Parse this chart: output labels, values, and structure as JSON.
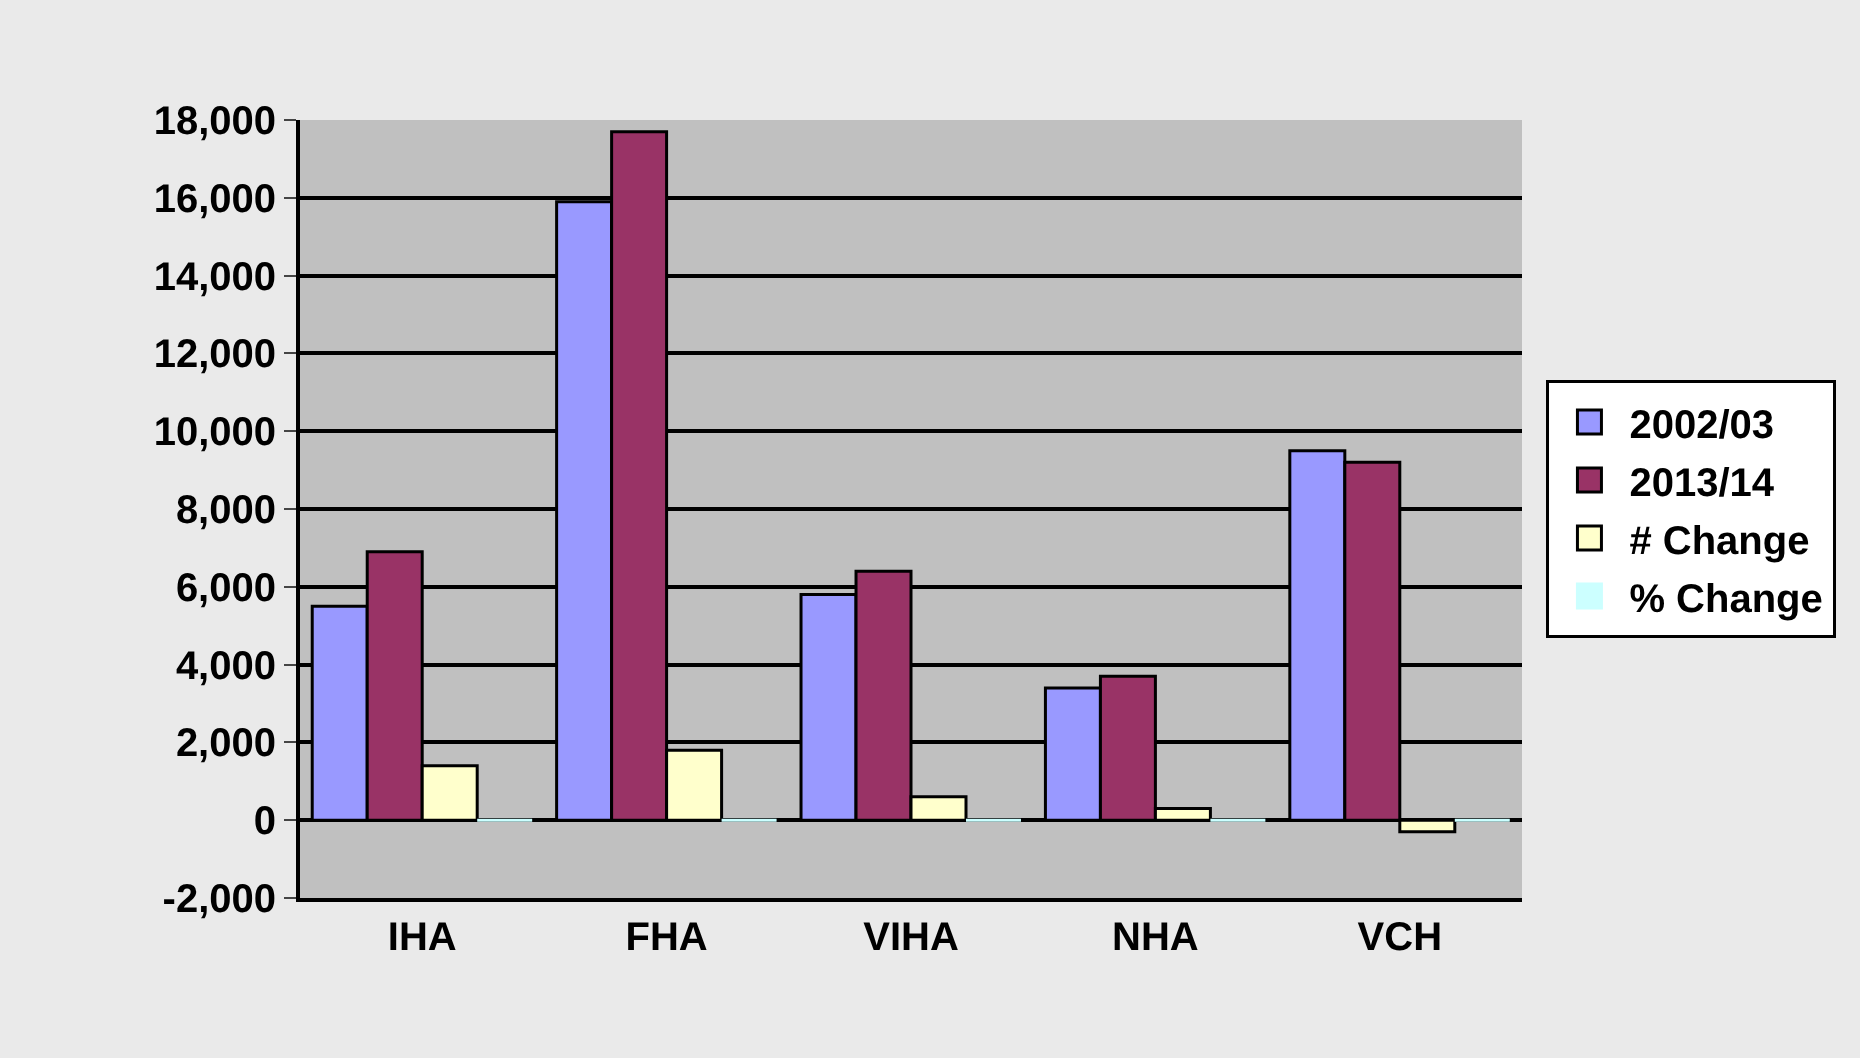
{
  "chart_data": {
    "type": "bar",
    "categories": [
      "IHA",
      "FHA",
      "VIHA",
      "NHA",
      "VCH"
    ],
    "series": [
      {
        "name": "2002/03",
        "color": "#9999ff",
        "values": [
          5500,
          15900,
          5800,
          3400,
          9500
        ]
      },
      {
        "name": "2013/14",
        "color": "#993366",
        "values": [
          6900,
          17700,
          6400,
          3700,
          9200
        ]
      },
      {
        "name": "# Change",
        "color": "#ffffcc",
        "values": [
          1400,
          1800,
          600,
          300,
          -300
        ]
      },
      {
        "name": "% Change",
        "color": "#ccffff",
        "values": [
          0,
          0,
          0,
          0,
          0
        ]
      }
    ],
    "ylim": [
      -2000,
      18000
    ],
    "yticks": [
      {
        "value": -2000,
        "label": "-2,000"
      },
      0,
      {
        "value": 2000,
        "label": "2,000"
      },
      {
        "value": 4000,
        "label": "4,000"
      },
      {
        "value": 6000,
        "label": "6,000"
      },
      {
        "value": 8000,
        "label": "8,000"
      },
      {
        "value": 10000,
        "label": "10,000"
      },
      {
        "value": 12000,
        "label": "12,000"
      },
      {
        "value": 14000,
        "label": "14,000"
      },
      {
        "value": 16000,
        "label": "16,000"
      },
      {
        "value": 18000,
        "label": "18,000"
      }
    ],
    "grid": "y",
    "legend": "right"
  }
}
